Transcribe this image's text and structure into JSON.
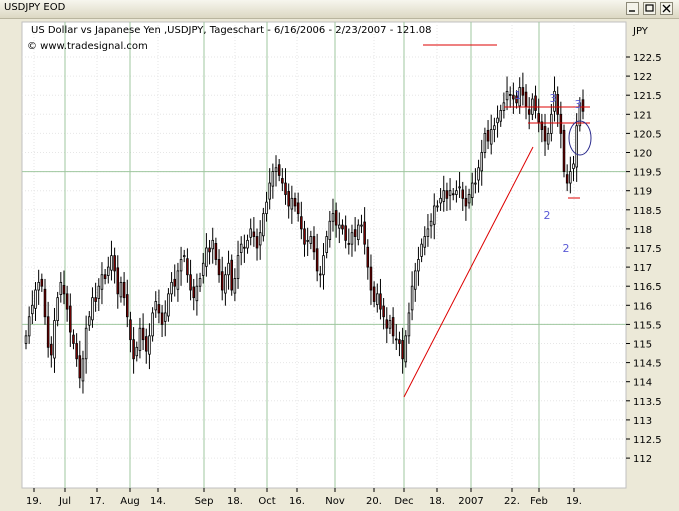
{
  "window": {
    "title": "USDJPY EOD"
  },
  "chart_data": {
    "type": "candlestick",
    "title": "US Dollar vs Japanese Yen ,USDJPY, Tageschart - 6/16/2006 - 2/23/2007 - 121.08",
    "source": "© www.tradesignal.com",
    "ylabel": "JPY",
    "ylim": [
      111.75,
      123
    ],
    "y_ticks": [
      "122.5",
      "122",
      "121.5",
      "121",
      "120.5",
      "120",
      "119.5",
      "119",
      "118.5",
      "118",
      "117.5",
      "117",
      "116.5",
      "116",
      "115.5",
      "115",
      "114.5",
      "114",
      "113.5",
      "113",
      "112.5",
      "112"
    ],
    "x_ticks": [
      "19.",
      "Jul",
      "17.",
      "Aug",
      "14.",
      "Sep",
      "18.",
      "Oct",
      "16.",
      "Nov",
      "20.",
      "Dec",
      "18.",
      "2007",
      "22.",
      "Feb",
      "19."
    ],
    "grid": true,
    "colors": {
      "bull": "#000000",
      "bear": "#8b0000",
      "annotation": "#dd0000",
      "wave_label": "#5a5ad6",
      "background": "#ffffff"
    },
    "annotations": [
      "1",
      "3",
      "3",
      "2",
      "2"
    ],
    "series_close": [
      115.2,
      115.7,
      116.0,
      116.4,
      116.6,
      116.5,
      115.7,
      114.9,
      114.7,
      115.6,
      116.2,
      116.6,
      116.3,
      115.9,
      115.3,
      115.0,
      114.6,
      114.1,
      114.6,
      115.4,
      115.7,
      116.2,
      116.1,
      116.5,
      116.8,
      116.7,
      117.0,
      117.3,
      116.9,
      116.3,
      116.6,
      116.2,
      115.7,
      115.1,
      114.6,
      114.9,
      115.4,
      115.1,
      114.8,
      115.2,
      115.8,
      116.1,
      115.8,
      115.5,
      115.8,
      116.3,
      116.6,
      116.5,
      116.9,
      117.2,
      117.3,
      116.8,
      116.4,
      116.2,
      116.5,
      116.7,
      117.1,
      117.5,
      117.4,
      117.7,
      117.2,
      116.8,
      116.4,
      116.8,
      117.1,
      116.4,
      116.7,
      117.3,
      117.6,
      117.5,
      117.7,
      118.0,
      117.8,
      117.5,
      117.9,
      118.4,
      118.7,
      119.2,
      119.5,
      119.6,
      119.4,
      119.2,
      118.9,
      118.6,
      118.8,
      118.6,
      118.4,
      118.0,
      117.6,
      117.7,
      117.8,
      117.4,
      116.9,
      116.8,
      117.3,
      117.8,
      118.2,
      118.4,
      118.1,
      118.1,
      118.0,
      117.7,
      117.6,
      117.9,
      117.8,
      118.1,
      118.1,
      117.6,
      117.0,
      116.4,
      116.1,
      116.3,
      115.9,
      115.7,
      115.4,
      115.6,
      115.2,
      115.1,
      115.0,
      114.6,
      115.2,
      115.8,
      116.5,
      116.9,
      117.2,
      117.6,
      117.8,
      118.0,
      118.2,
      118.6,
      118.6,
      118.8,
      119.0,
      118.8,
      119.0,
      118.9,
      119.0,
      119.1,
      118.8,
      118.6,
      118.9,
      119.2,
      119.2,
      119.6,
      120.0,
      120.5,
      120.3,
      120.6,
      120.7,
      120.9,
      121.1,
      121.3,
      121.6,
      121.5,
      121.4,
      121.3,
      121.7,
      121.5,
      121.2,
      121.0,
      121.4,
      121.1,
      120.8,
      120.6,
      120.3,
      120.5,
      121.0,
      121.6,
      121.0,
      120.5,
      119.5,
      119.2,
      119.5,
      119.7,
      120.7,
      121.3,
      121.08
    ]
  }
}
